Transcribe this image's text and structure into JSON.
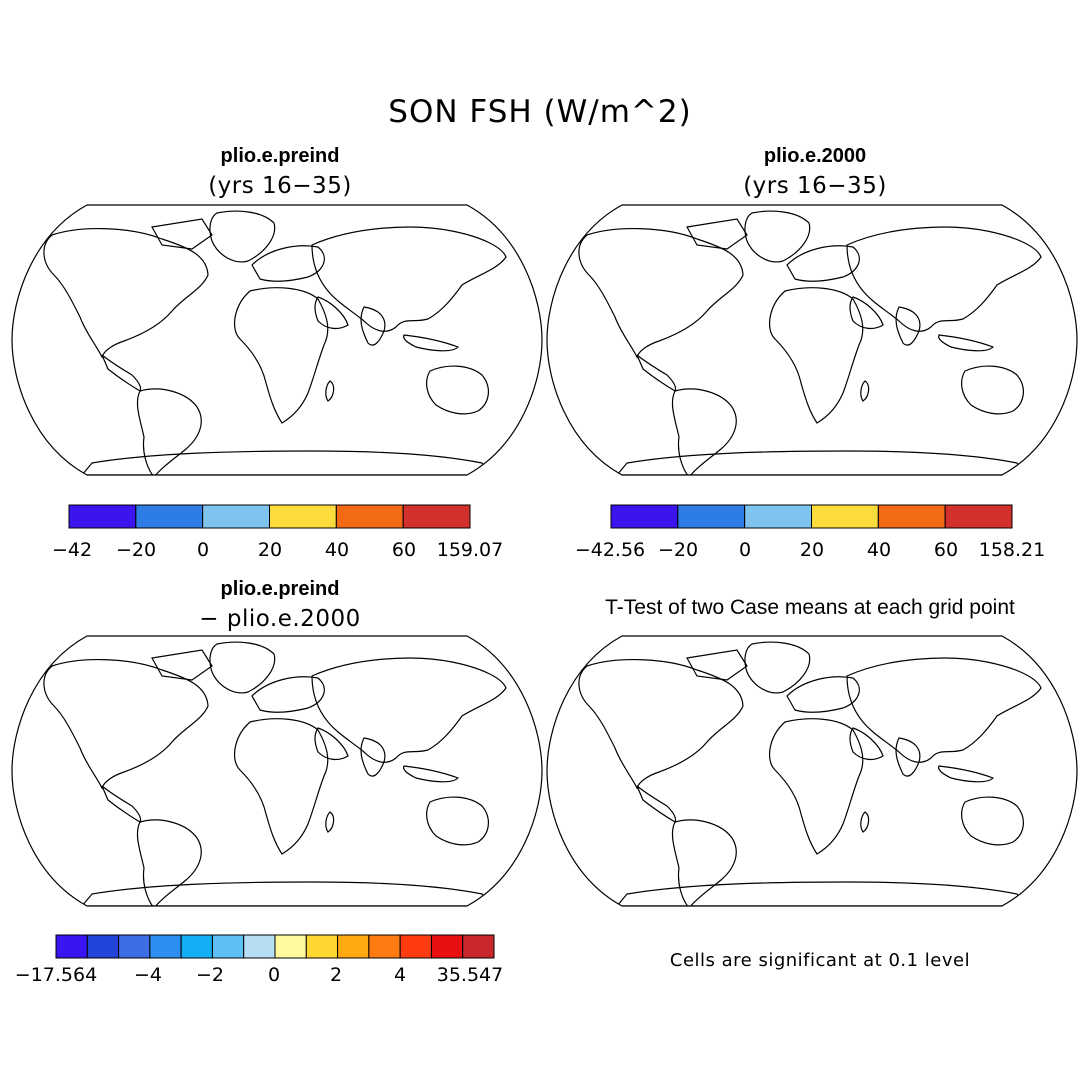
{
  "figure": {
    "title": "SON FSH (W/m^2)",
    "colors": {
      "c_n42": "#3c14f0",
      "c_n20": "#2e7de6",
      "c_0": "#7ec4ee",
      "c_20": "#fbdc3c",
      "c_40": "#f36a14",
      "c_60": "#d2302c",
      "ocean": "#ffffff",
      "outline": "#000000",
      "sig": "#ee1010"
    }
  },
  "panels": {
    "top_left": {
      "title": "plio.e.preind",
      "subtitle": "(yrs 16−35)",
      "colorbar": {
        "colors": [
          "#3c14f0",
          "#2e7de6",
          "#7ec4ee",
          "#fbdc3c",
          "#f36a14",
          "#d2302c"
        ],
        "labels": [
          "−42",
          "−20",
          "0",
          "20",
          "40",
          "60",
          "159.07"
        ]
      }
    },
    "top_right": {
      "title": "plio.e.2000",
      "subtitle": "(yrs 16−35)",
      "colorbar": {
        "colors": [
          "#3c14f0",
          "#2e7de6",
          "#7ec4ee",
          "#fbdc3c",
          "#f36a14",
          "#d2302c"
        ],
        "labels": [
          "−42.56",
          "−20",
          "0",
          "20",
          "40",
          "60",
          "158.21"
        ]
      }
    },
    "bottom_left": {
      "title": "plio.e.preind",
      "subtitle": "− plio.e.2000",
      "colorbar": {
        "colors": [
          "#3a14f2",
          "#2244d8",
          "#3c6ee6",
          "#2d8ff0",
          "#14aef5",
          "#5ec0f2",
          "#b5def5",
          "#fffaa0",
          "#ffd732",
          "#ffaa10",
          "#ff7a10",
          "#ff3c10",
          "#e81010",
          "#c8282a"
        ],
        "labels": [
          "−17.564",
          "−4",
          "−2",
          "0",
          "2",
          "4",
          "35.547"
        ]
      }
    },
    "bottom_right": {
      "title": "T-Test of two Case means at each grid point",
      "note": "Cells are significant at 0.1 level"
    }
  }
}
